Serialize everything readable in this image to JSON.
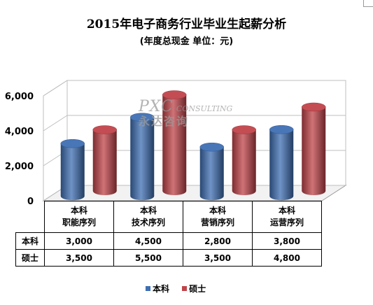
{
  "title": "2015年电子商务行业毕业生起薪分析",
  "subtitle": "(年度总现金 单位：元)",
  "watermark": {
    "brand": "PXC",
    "text": "CONSULTING",
    "cn": "永达咨询"
  },
  "chart_data": {
    "type": "bar",
    "style": "3d-cylinder",
    "categories": [
      [
        "本科",
        "职能序列"
      ],
      [
        "本科",
        "技术序列"
      ],
      [
        "本科",
        "营销序列"
      ],
      [
        "本科",
        "运营序列"
      ]
    ],
    "series": [
      {
        "name": "本科",
        "color": "#3f6fb3",
        "values": [
          3000,
          4500,
          2800,
          3800
        ],
        "labels": [
          "3,000",
          "4,500",
          "2,800",
          "3,800"
        ]
      },
      {
        "name": "硕士",
        "color": "#c0444a",
        "values": [
          3500,
          5500,
          3500,
          4800
        ],
        "labels": [
          "3,500",
          "5,500",
          "3,500",
          "4,800"
        ]
      }
    ],
    "ylim": [
      0,
      6000
    ],
    "yticks": [
      0,
      2000,
      4000,
      6000
    ],
    "ytick_labels": [
      "0",
      "2,000",
      "4,000",
      "6,000"
    ],
    "grid": true,
    "legend": "bottom",
    "table": true
  }
}
